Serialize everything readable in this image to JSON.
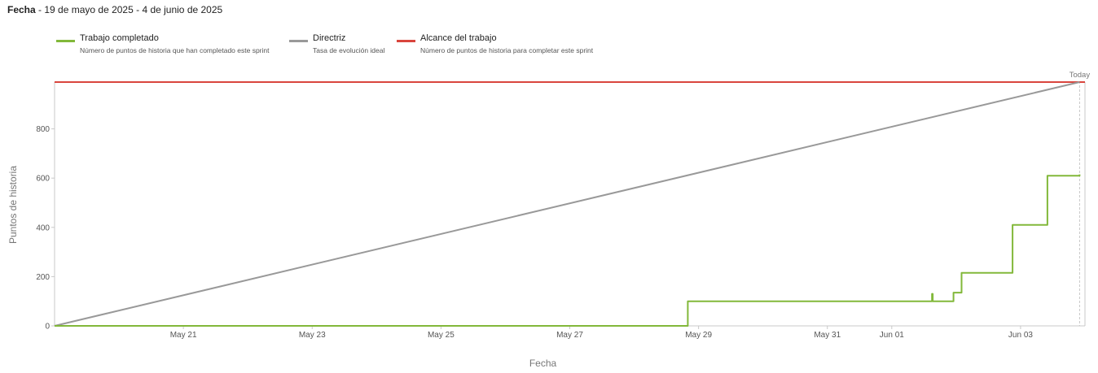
{
  "header": {
    "label": "Fecha",
    "separator": " - ",
    "range": "19 de mayo de 2025 - 4 de junio de 2025"
  },
  "legend": [
    {
      "name": "Trabajo completado",
      "desc": "Número de puntos de historia que han completado este sprint",
      "color": "#82b83a"
    },
    {
      "name": "Directriz",
      "desc": "Tasa de evolución ideal",
      "color": "#999999"
    },
    {
      "name": "Alcance del trabajo",
      "desc": "Número de puntos de historia para completar este sprint",
      "color": "#d9453d"
    }
  ],
  "chart_data": {
    "type": "line",
    "xlabel": "Fecha",
    "ylabel": "Puntos de historia",
    "x_range": [
      "2025-05-19",
      "2025-06-04"
    ],
    "ylim": [
      0,
      990
    ],
    "y_ticks": [
      0,
      200,
      400,
      600,
      800
    ],
    "x_ticks": [
      {
        "date": "2025-05-21",
        "label": "May 21"
      },
      {
        "date": "2025-05-23",
        "label": "May 23"
      },
      {
        "date": "2025-05-25",
        "label": "May 25"
      },
      {
        "date": "2025-05-27",
        "label": "May 27"
      },
      {
        "date": "2025-05-29",
        "label": "May 29"
      },
      {
        "date": "2025-05-31",
        "label": "May 31"
      },
      {
        "date": "2025-06-01",
        "label": "Jun 01"
      },
      {
        "date": "2025-06-03",
        "label": "Jun 03"
      }
    ],
    "today": {
      "label": "Today",
      "date": "2025-06-03T22:00"
    },
    "grid": false,
    "series": [
      {
        "name": "Alcance del trabajo",
        "color": "#d9453d",
        "step": false,
        "points": [
          [
            "2025-05-19T00:00",
            990
          ],
          [
            "2025-06-04T00:00",
            990
          ]
        ]
      },
      {
        "name": "Directriz",
        "color": "#999999",
        "step": false,
        "points": [
          [
            "2025-05-19T00:00",
            0
          ],
          [
            "2025-06-03T22:00",
            990
          ]
        ]
      },
      {
        "name": "Trabajo completado",
        "color": "#82b83a",
        "step": true,
        "points": [
          [
            "2025-05-19T00:00",
            0
          ],
          [
            "2025-05-28T20:00",
            100
          ],
          [
            "2025-06-01T15:00",
            130
          ],
          [
            "2025-06-01T15:15",
            100
          ],
          [
            "2025-06-01T23:00",
            135
          ],
          [
            "2025-06-02T02:00",
            215
          ],
          [
            "2025-06-02T21:00",
            410
          ],
          [
            "2025-06-03T10:00",
            610
          ],
          [
            "2025-06-03T22:00",
            615
          ]
        ]
      }
    ]
  }
}
